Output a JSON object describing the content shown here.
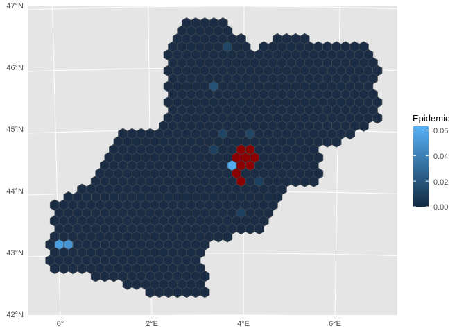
{
  "map": {
    "lat_labels": [
      "47°N",
      "46°N",
      "45°N",
      "44°N",
      "43°N",
      "42°N"
    ],
    "lon_labels": [
      "0°",
      "2°E",
      "4°E",
      "6°E"
    ],
    "lat_values": [
      47,
      46,
      45,
      44,
      43,
      42
    ],
    "lon_values": [
      0,
      2,
      4,
      6
    ],
    "fill_colors": {
      "panel": "#e5e5e5",
      "grid": "#ffffff",
      "base_hex": "#1b2d44",
      "infected_hex": "#8b0000",
      "hex_border": "#3d4650"
    },
    "infected_cells": [
      {
        "lon": 3.85,
        "lat": 44.72
      },
      {
        "lon": 4.02,
        "lat": 44.72
      },
      {
        "lon": 4.18,
        "lat": 44.72
      },
      {
        "lon": 3.78,
        "lat": 44.58
      },
      {
        "lon": 3.94,
        "lat": 44.58
      },
      {
        "lon": 4.1,
        "lat": 44.58
      },
      {
        "lon": 4.26,
        "lat": 44.58
      },
      {
        "lon": 3.86,
        "lat": 44.45
      },
      {
        "lon": 4.02,
        "lat": 44.45
      },
      {
        "lon": 4.18,
        "lat": 44.45
      },
      {
        "lon": 3.86,
        "lat": 44.27
      },
      {
        "lon": 4.02,
        "lat": 44.17
      }
    ],
    "highlighted_cells": [
      {
        "lon": 0.04,
        "lat": 43.11,
        "value": 0.055
      },
      {
        "lon": 0.22,
        "lat": 43.11,
        "value": 0.05
      },
      {
        "lon": 3.7,
        "lat": 44.4,
        "value": 0.06
      },
      {
        "lon": 3.38,
        "lat": 45.78,
        "value": 0.018
      },
      {
        "lon": 3.62,
        "lat": 45.0,
        "value": 0.012
      },
      {
        "lon": 4.1,
        "lat": 45.0,
        "value": 0.012
      },
      {
        "lon": 3.45,
        "lat": 44.72,
        "value": 0.01
      },
      {
        "lon": 4.4,
        "lat": 44.17,
        "value": 0.01
      },
      {
        "lon": 3.85,
        "lat": 43.7,
        "value": 0.01
      },
      {
        "lon": 3.62,
        "lat": 46.35,
        "value": 0.012
      }
    ]
  },
  "legend": {
    "title": "Epidemic",
    "labels": [
      "0.06",
      "0.04",
      "0.02",
      "0.00"
    ],
    "values": [
      0.06,
      0.04,
      0.02,
      0.0
    ],
    "range": [
      0,
      0.063
    ],
    "color_low": "#132b43",
    "color_high": "#56b1f7"
  }
}
